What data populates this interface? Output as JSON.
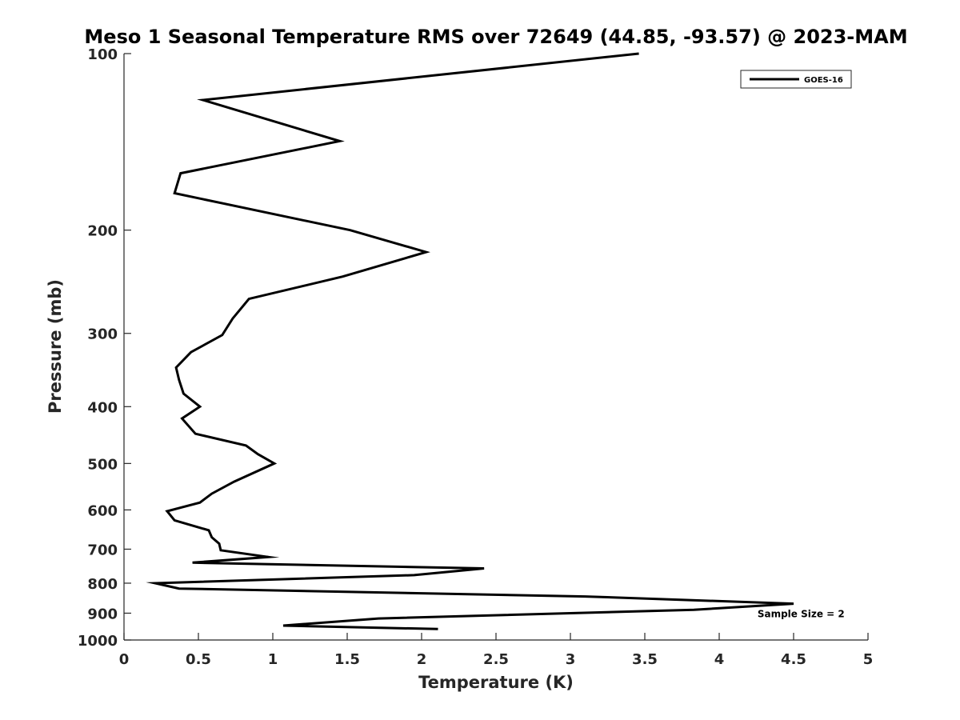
{
  "chart_data": {
    "type": "line",
    "title": "Meso 1 Seasonal Temperature RMS over 72649 (44.85, -93.57) @ 2023-MAM",
    "xlabel": "Temperature (K)",
    "ylabel": "Pressure (mb)",
    "xlim": [
      0,
      5
    ],
    "ylim": [
      100,
      1000
    ],
    "y_scale": "log",
    "y_reversed": true,
    "x_ticks": [
      "0",
      "0.5",
      "1",
      "1.5",
      "2",
      "2.5",
      "3",
      "3.5",
      "4",
      "4.5",
      "5"
    ],
    "x_tick_values": [
      0,
      0.5,
      1,
      1.5,
      2,
      2.5,
      3,
      3.5,
      4,
      4.5,
      5
    ],
    "y_ticks": [
      "100",
      "200",
      "300",
      "400",
      "500",
      "600",
      "700",
      "800",
      "900",
      "1000"
    ],
    "y_tick_values": [
      100,
      200,
      300,
      400,
      500,
      600,
      700,
      800,
      900,
      1000
    ],
    "grid": false,
    "legend_position": "top-right",
    "series": [
      {
        "name": "GOES-16",
        "color": "#000000",
        "x": [
          3.46,
          0.53,
          1.45,
          0.38,
          0.34,
          1.52,
          2.03,
          1.47,
          0.84,
          0.73,
          0.66,
          0.45,
          0.35,
          0.37,
          0.4,
          0.51,
          0.39,
          0.48,
          0.82,
          0.9,
          1.01,
          0.74,
          0.59,
          0.51,
          0.29,
          0.34,
          0.57,
          0.59,
          0.64,
          0.65,
          0.97,
          0.46,
          2.42,
          1.95,
          0.21,
          0.37,
          3.1,
          4.5,
          3.83,
          1.71,
          1.07,
          2.11
        ],
        "y": [
          100,
          120,
          141,
          160,
          173,
          200,
          218,
          240,
          262,
          283,
          302,
          323,
          343,
          360,
          380,
          400,
          419,
          445,
          466,
          482,
          500,
          537,
          563,
          583,
          603,
          625,
          650,
          668,
          685,
          703,
          722,
          738,
          755,
          775,
          800,
          817,
          843,
          867,
          888,
          919,
          945,
          958
        ]
      }
    ],
    "annotations": [
      {
        "text": "Sample Size = 2",
        "x": 4.55,
        "y": 900
      }
    ]
  }
}
